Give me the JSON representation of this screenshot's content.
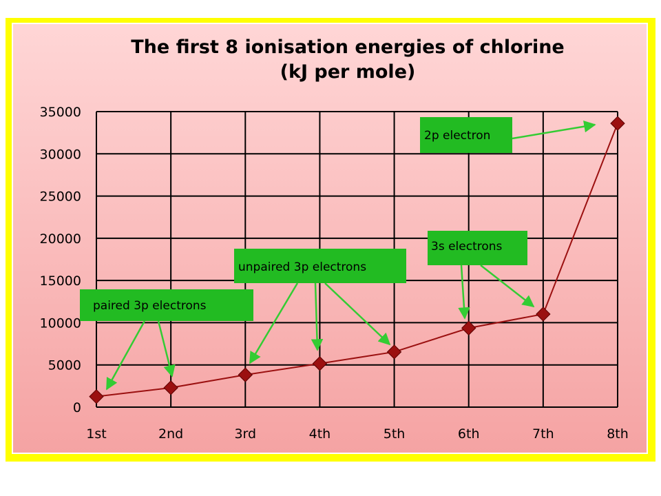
{
  "chart_data": {
    "type": "line",
    "title": "The first 8 ionisation energies of chlorine",
    "subtitle": "(kJ per mole)",
    "categories": [
      "1st",
      "2nd",
      "3rd",
      "4th",
      "5th",
      "6th",
      "7th",
      "8th"
    ],
    "values": [
      1251,
      2298,
      3822,
      5159,
      6542,
      9362,
      11018,
      33604
    ],
    "ylim": [
      0,
      35000
    ],
    "yticks": [
      0,
      5000,
      10000,
      15000,
      20000,
      25000,
      30000,
      35000
    ],
    "ytick_labels": [
      "0",
      "5000",
      "10000",
      "15000",
      "20000",
      "25000",
      "30000",
      "35000"
    ],
    "grid": true,
    "series_color": "#9b1010",
    "annotations": [
      {
        "label": "paired 3p electrons",
        "targets": [
          0,
          1
        ]
      },
      {
        "label": "unpaired 3p electrons",
        "targets": [
          2,
          3,
          4
        ]
      },
      {
        "label": "3s electrons",
        "targets": [
          5,
          6
        ]
      },
      {
        "label": "2p electron",
        "targets": [
          7
        ]
      }
    ]
  },
  "colors": {
    "frame": "#ffff00",
    "plot_top": "#ffd6d6",
    "plot_bottom": "#f5a3a3",
    "annotation_box": "#22bb22",
    "arrow": "#33cc33"
  }
}
